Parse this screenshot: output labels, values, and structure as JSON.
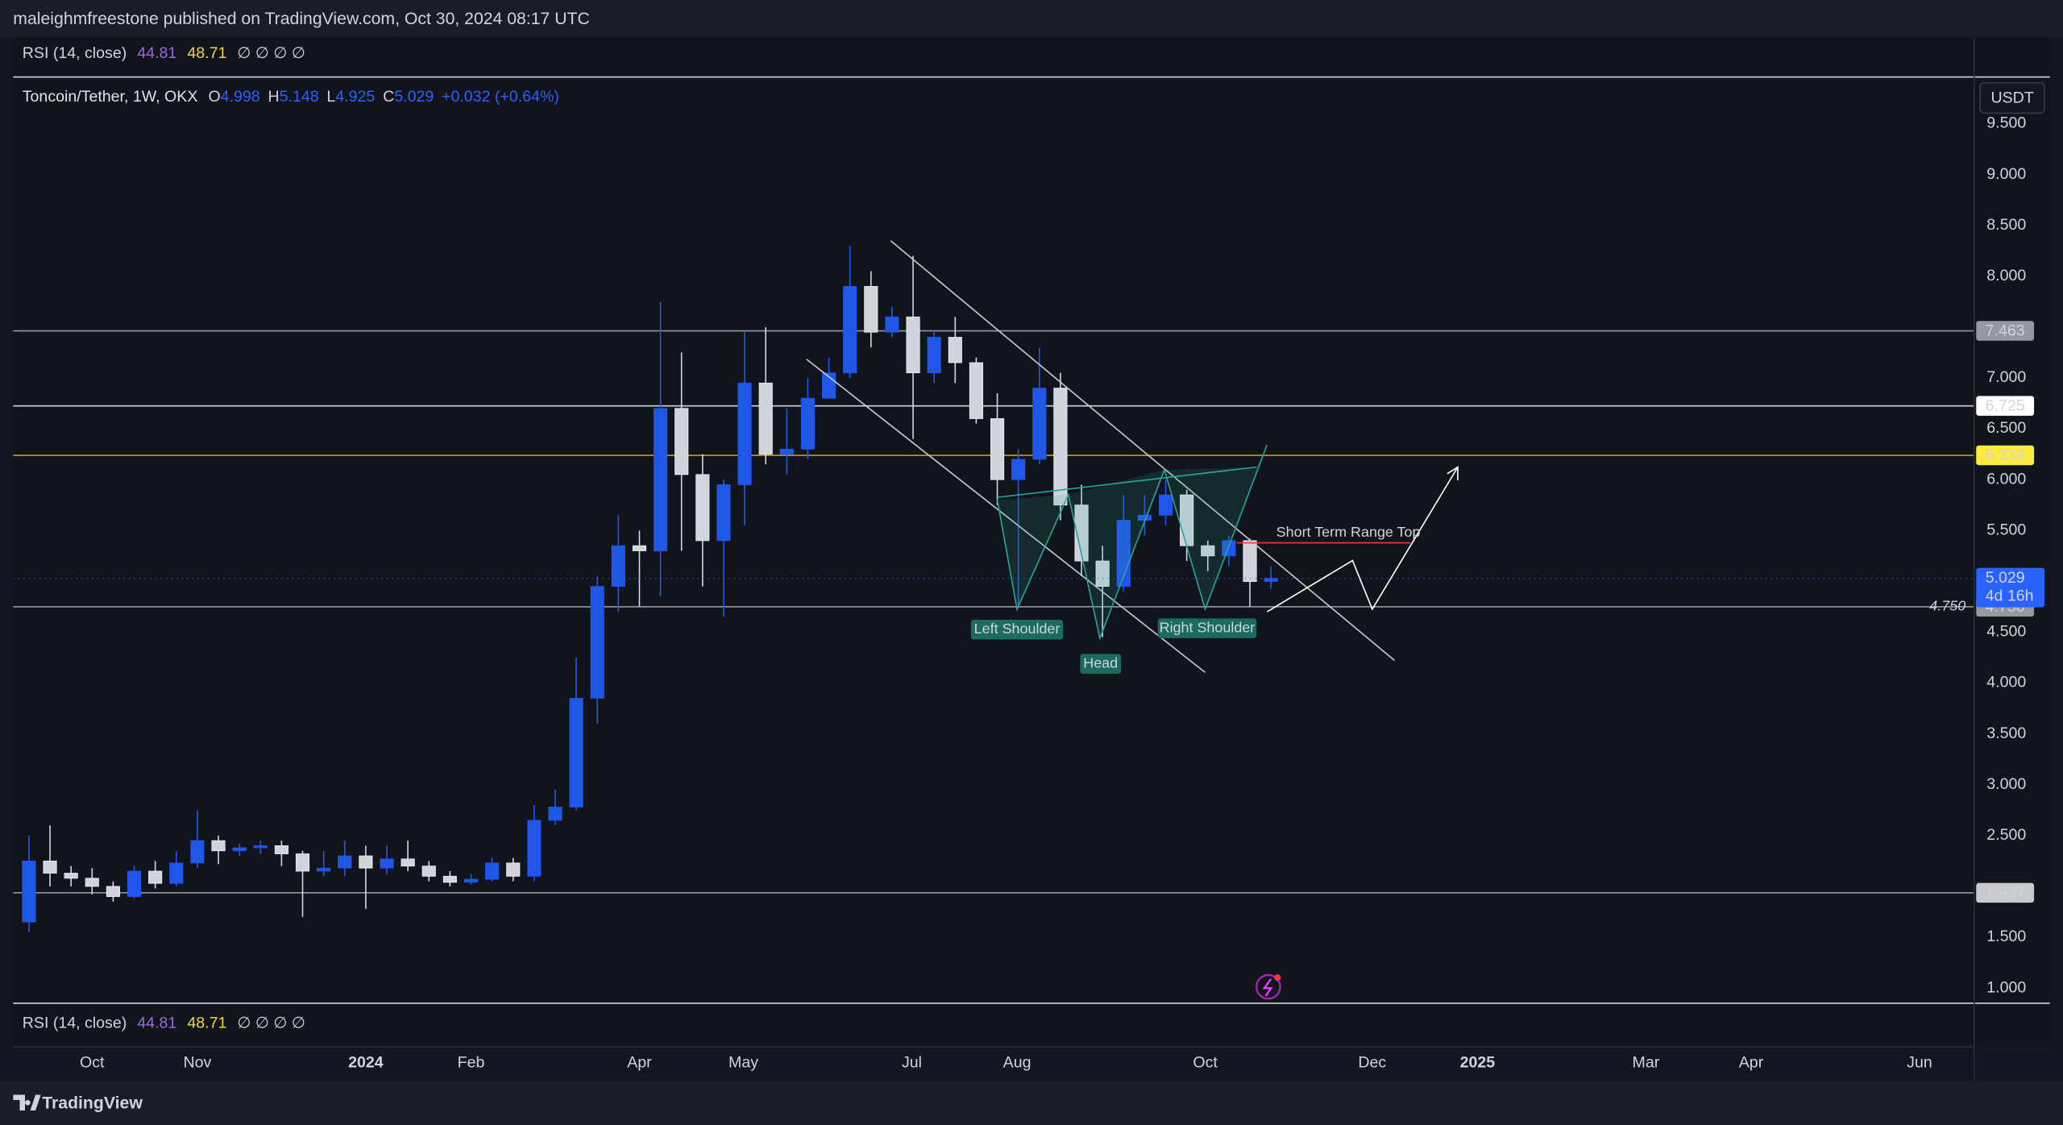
{
  "header": {
    "published": "maleighmfreestone published on TradingView.com, Oct 30, 2024 08:17 UTC"
  },
  "rsi": {
    "name": "RSI (14, close)",
    "values": [
      44.81,
      48.71
    ],
    "placeholders": "∅ ∅ ∅ ∅"
  },
  "legend": {
    "symbol": "Toncoin/Tether, 1W, OKX",
    "o": "O",
    "h": "H",
    "l": "L",
    "c": "C",
    "change": "+0.032 (+0.64%)"
  },
  "currency": "USDT",
  "footer": {
    "brand": "TradingView"
  },
  "chart_data": {
    "type": "candlestick",
    "up_color": "#2157e8",
    "down_color": "#d1d4dc",
    "x": [
      0,
      1,
      2,
      3,
      4,
      5,
      6,
      7,
      8,
      9,
      10,
      11,
      12,
      13,
      14,
      15,
      16,
      17,
      18,
      19,
      20,
      21,
      22,
      23,
      24,
      25,
      26,
      27,
      28,
      29,
      30,
      31,
      32,
      33,
      34,
      35,
      36,
      37,
      38,
      39,
      40,
      41,
      42,
      43,
      44,
      45,
      46,
      47,
      48,
      49,
      50,
      51,
      52,
      53,
      54,
      55,
      56,
      57,
      58,
      59
    ],
    "open": [
      1.65,
      2.25,
      2.13,
      2.08,
      2.0,
      1.9,
      2.15,
      2.03,
      2.23,
      2.45,
      2.35,
      2.38,
      2.4,
      2.32,
      2.15,
      2.18,
      2.3,
      2.18,
      2.27,
      2.2,
      2.1,
      2.04,
      2.07,
      2.23,
      2.1,
      2.65,
      2.78,
      3.85,
      4.95,
      5.35,
      5.3,
      6.7,
      6.05,
      5.4,
      5.95,
      6.95,
      6.25,
      6.3,
      6.8,
      7.05,
      7.9,
      7.45,
      7.6,
      7.05,
      7.4,
      7.15,
      6.6,
      6.0,
      6.2,
      6.9,
      5.75,
      5.2,
      4.95,
      5.6,
      5.65,
      5.85,
      5.35,
      5.25,
      5.4,
      4.998
    ],
    "high": [
      2.5,
      2.6,
      2.2,
      2.18,
      2.05,
      2.2,
      2.25,
      2.35,
      2.75,
      2.5,
      2.42,
      2.45,
      2.45,
      2.35,
      2.35,
      2.45,
      2.4,
      2.4,
      2.45,
      2.25,
      2.15,
      2.12,
      2.28,
      2.28,
      2.8,
      2.95,
      4.25,
      5.05,
      5.65,
      5.5,
      7.75,
      7.25,
      6.25,
      6.0,
      7.45,
      7.5,
      6.7,
      7.0,
      7.2,
      8.3,
      8.05,
      7.7,
      8.2,
      7.45,
      7.6,
      7.2,
      6.85,
      6.3,
      7.3,
      7.05,
      5.95,
      5.35,
      5.85,
      5.85,
      6.0,
      5.9,
      5.4,
      5.45,
      5.42,
      5.148
    ],
    "low": [
      1.55,
      2.0,
      2.0,
      1.92,
      1.85,
      1.88,
      1.98,
      2.0,
      2.18,
      2.22,
      2.3,
      2.32,
      2.2,
      1.7,
      2.1,
      2.1,
      1.78,
      2.12,
      2.15,
      2.05,
      2.0,
      2.02,
      2.05,
      2.05,
      2.05,
      2.6,
      2.75,
      3.6,
      4.7,
      4.75,
      4.85,
      5.3,
      4.95,
      4.65,
      5.55,
      6.15,
      6.05,
      6.2,
      6.8,
      7.0,
      7.3,
      7.4,
      6.4,
      6.95,
      6.95,
      6.55,
      5.75,
      4.75,
      6.15,
      5.6,
      5.05,
      4.45,
      4.9,
      5.45,
      5.55,
      5.2,
      5.1,
      5.15,
      4.75,
      4.925
    ],
    "close": [
      2.25,
      2.13,
      2.08,
      2.0,
      1.9,
      2.15,
      2.03,
      2.23,
      2.45,
      2.35,
      2.38,
      2.4,
      2.32,
      2.15,
      2.18,
      2.3,
      2.18,
      2.27,
      2.2,
      2.1,
      2.04,
      2.07,
      2.23,
      2.1,
      2.65,
      2.78,
      3.85,
      4.95,
      5.35,
      5.3,
      6.7,
      6.05,
      5.4,
      5.95,
      6.95,
      6.25,
      6.3,
      6.8,
      7.05,
      7.9,
      7.45,
      7.6,
      7.05,
      7.4,
      7.15,
      6.6,
      6.0,
      6.2,
      6.9,
      5.75,
      5.2,
      4.95,
      5.6,
      5.65,
      5.85,
      5.35,
      5.25,
      5.4,
      4.998,
      5.029
    ],
    "countdown": "4d 16h",
    "xlim": [
      -0.75,
      92.375
    ],
    "xticks": [
      {
        "value": 3,
        "label": "Oct"
      },
      {
        "value": 8,
        "label": "Nov"
      },
      {
        "value": 16,
        "label": "2024"
      },
      {
        "value": 21,
        "label": "Feb"
      },
      {
        "value": 29,
        "label": "Apr"
      },
      {
        "value": 33.94,
        "label": "May"
      },
      {
        "value": 41.94,
        "label": "Jul"
      },
      {
        "value": 46.94,
        "label": "Aug"
      },
      {
        "value": 55.88,
        "label": "Oct"
      },
      {
        "value": 63.81,
        "label": "Dec"
      },
      {
        "value": 68.81,
        "label": "2025"
      },
      {
        "value": 76.81,
        "label": "Mar"
      },
      {
        "value": 81.81,
        "label": "Apr"
      },
      {
        "value": 89.81,
        "label": "Jun"
      }
    ],
    "ylim": [
      0.857,
      9.966
    ],
    "yticks": [
      {
        "value": 1,
        "label": "1.000"
      },
      {
        "value": 1.5,
        "label": "1.500"
      },
      {
        "value": 2.5,
        "label": "2.500"
      },
      {
        "value": 3,
        "label": "3.000"
      },
      {
        "value": 3.5,
        "label": "3.500"
      },
      {
        "value": 4,
        "label": "4.000"
      },
      {
        "value": 4.5,
        "label": "4.500"
      },
      {
        "value": 5.5,
        "label": "5.500"
      },
      {
        "value": 6,
        "label": "6.000"
      },
      {
        "value": 6.5,
        "label": "6.500"
      },
      {
        "value": 7,
        "label": "7.000"
      },
      {
        "value": 8,
        "label": "8.000"
      },
      {
        "value": 8.5,
        "label": "8.500"
      },
      {
        "value": 9,
        "label": "9.000"
      },
      {
        "value": 9.5,
        "label": "9.500"
      }
    ],
    "levels": [
      {
        "value": 7.463,
        "color": "#9598a1",
        "box": "#9598a1",
        "text_color": "#131722"
      },
      {
        "value": 6.725,
        "color": "#d1d4dc",
        "box": "#ffffff",
        "text_color": "#131722"
      },
      {
        "value": 6.239,
        "color": "#b5a436",
        "box": "#ffeb3b",
        "text_color": "#131722"
      },
      {
        "value": 4.75,
        "label": "4.750",
        "color": "#9598a1",
        "box": "#9598a1",
        "text_color": "#131722"
      },
      {
        "value": 1.937,
        "color": "#9598a1",
        "box": "#c7c9ce",
        "text_color": "#131722"
      }
    ],
    "annotations": {
      "left_shoulder": "Left Shoulder",
      "head": "Head",
      "right_shoulder": "Right Shoulder",
      "range_top": "Short Term Range Top"
    }
  }
}
